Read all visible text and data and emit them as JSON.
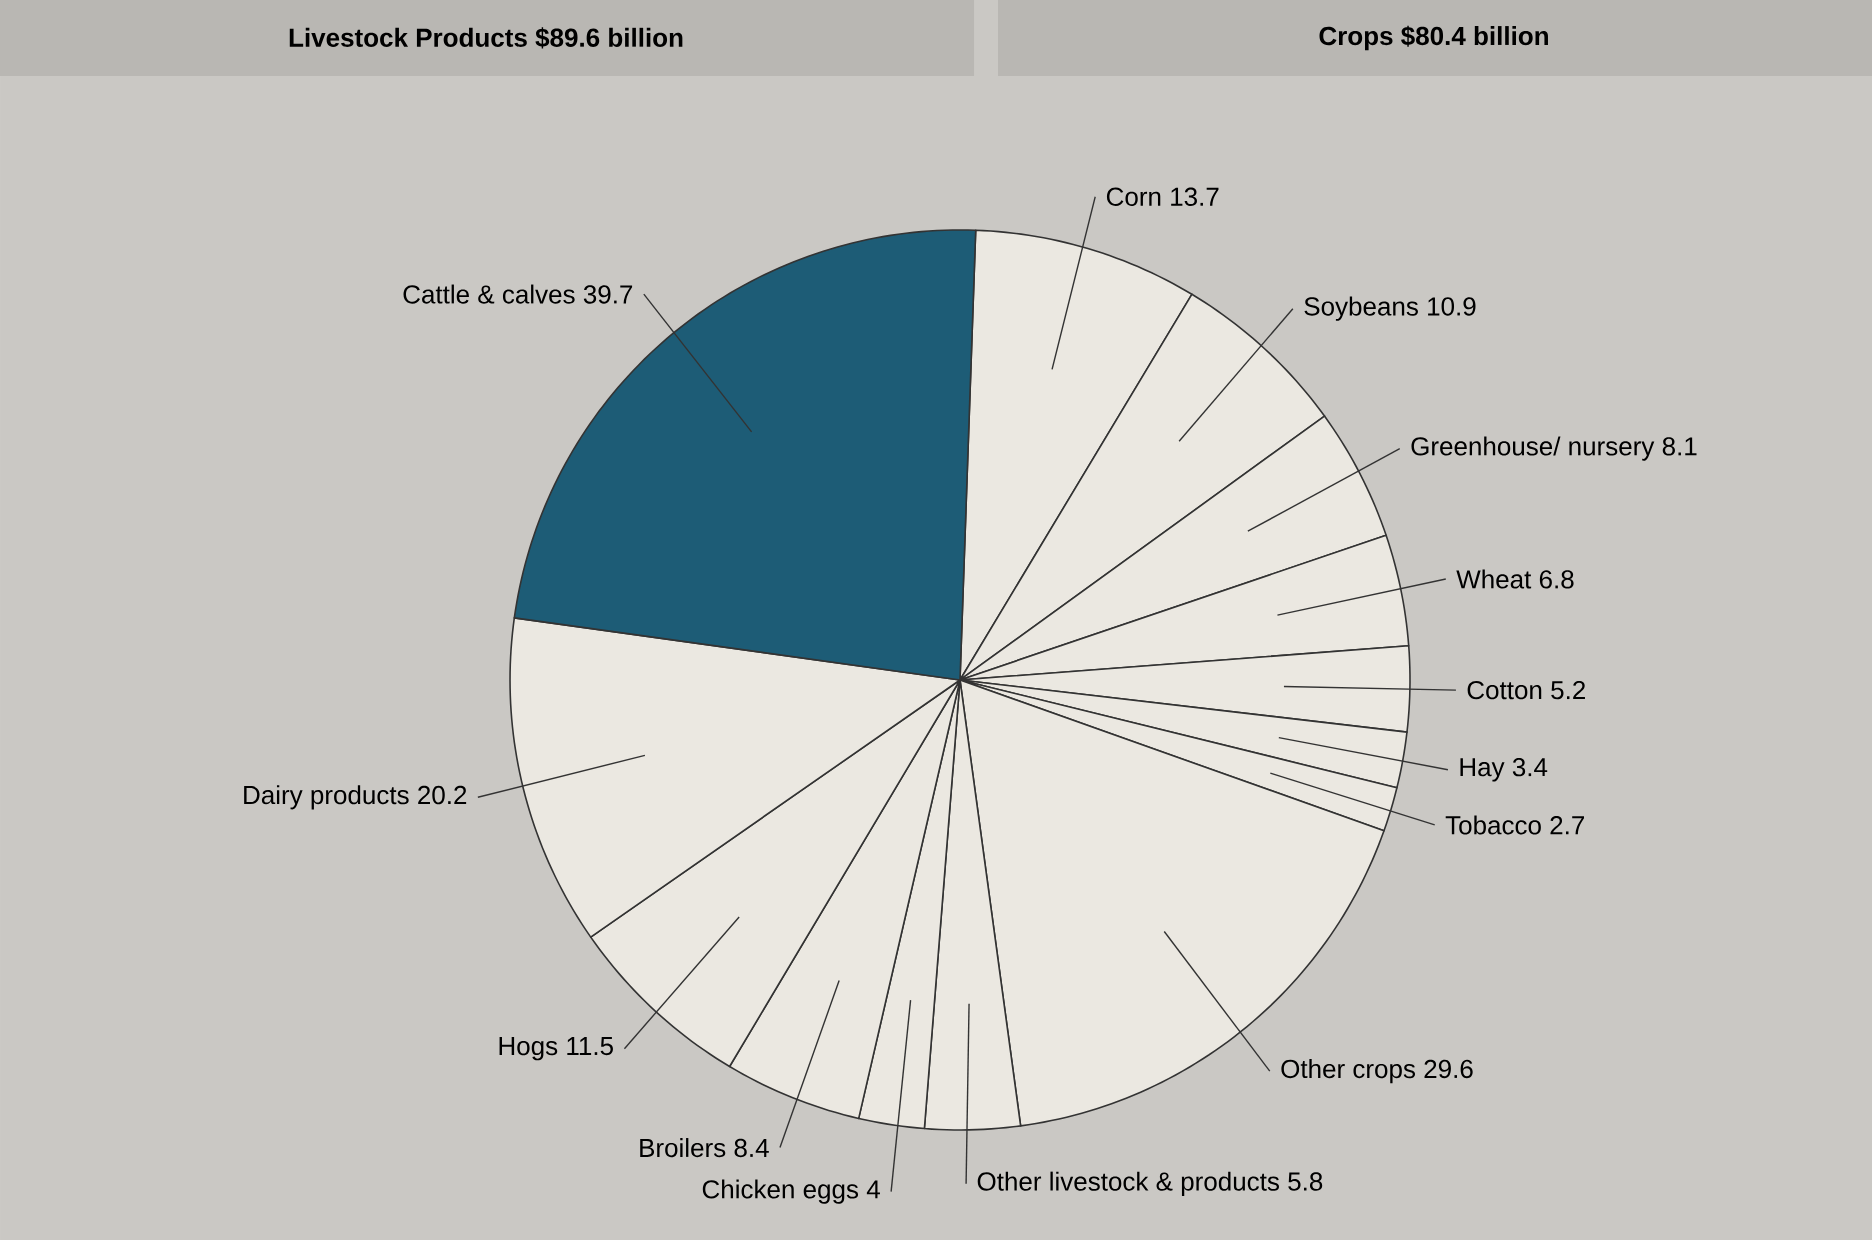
{
  "chart_data": {
    "type": "pie",
    "title": "Livestock Products $89.6 billion",
    "subtitle": "Crops $80.4 billion",
    "categories": [
      "Corn",
      "Soybeans",
      "Greenhouse/ nursery",
      "Wheat",
      "Cotton",
      "Hay",
      "Tobacco",
      "Other crops",
      "Other livestock & products",
      "Chicken eggs",
      "Broilers",
      "Hogs",
      "Dairy products",
      "Cattle & calves"
    ],
    "values": [
      13.7,
      10.9,
      8.1,
      6.8,
      5.2,
      3.4,
      2.7,
      29.6,
      5.8,
      4,
      8.4,
      11.5,
      20.2,
      39.7
    ],
    "colors": [
      "#ebe8e1",
      "#ebe8e1",
      "#ebe8e1",
      "#ebe8e1",
      "#ebe8e1",
      "#ebe8e1",
      "#ebe8e1",
      "#ebe8e1",
      "#ebe8e1",
      "#ebe8e1",
      "#ebe8e1",
      "#ebe8e1",
      "#ebe8e1",
      "#1d5c76"
    ],
    "data_labels": true
  }
}
